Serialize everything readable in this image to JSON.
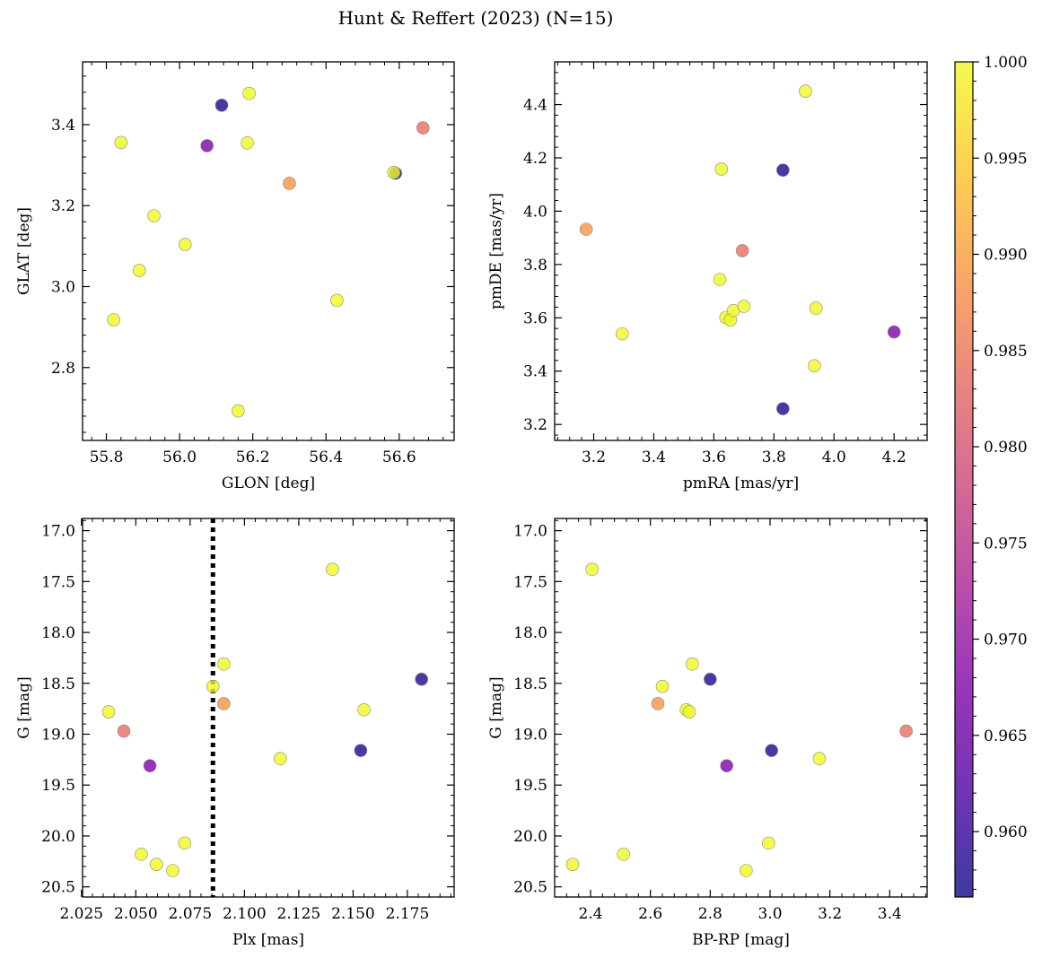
{
  "figure": {
    "title": "Hunt & Reffert (2023) (N=15)"
  },
  "colorbar": {
    "min": 0.9566,
    "max": 1.0,
    "colormap": "plasma",
    "ticks": [
      0.96,
      0.965,
      0.97,
      0.975,
      0.98,
      0.985,
      0.99,
      0.995,
      1.0
    ],
    "tick_labels": [
      "0.960",
      "0.965",
      "0.970",
      "0.975",
      "0.980",
      "0.985",
      "0.990",
      "0.995",
      "1.000"
    ]
  },
  "chart_data": [
    {
      "type": "scatter",
      "id": "glon-glat",
      "title": "",
      "xlabel": "GLON [deg]",
      "ylabel": "GLAT [deg]",
      "xlim": [
        55.735,
        56.75
      ],
      "ylim": [
        2.62,
        3.555
      ],
      "invert_y": false,
      "xticks": [
        55.8,
        56.0,
        56.2,
        56.4,
        56.6
      ],
      "xtick_labels": [
        "55.8",
        "56.0",
        "56.2",
        "56.4",
        "56.6"
      ],
      "yticks": [
        2.8,
        3.0,
        3.2,
        3.4
      ],
      "ytick_labels": [
        "2.8",
        "3.0",
        "3.2",
        "3.4"
      ],
      "points": [
        {
          "x": 55.82,
          "y": 2.918,
          "p": 1.0
        },
        {
          "x": 55.84,
          "y": 3.356,
          "p": 1.0
        },
        {
          "x": 55.89,
          "y": 3.04,
          "p": 1.0
        },
        {
          "x": 55.93,
          "y": 3.175,
          "p": 1.0
        },
        {
          "x": 56.015,
          "y": 3.104,
          "p": 1.0
        },
        {
          "x": 56.075,
          "y": 3.348,
          "p": 0.967
        },
        {
          "x": 56.115,
          "y": 3.448,
          "p": 0.958
        },
        {
          "x": 56.16,
          "y": 2.693,
          "p": 1.0
        },
        {
          "x": 56.185,
          "y": 3.355,
          "p": 1.0
        },
        {
          "x": 56.19,
          "y": 3.477,
          "p": 1.0
        },
        {
          "x": 56.3,
          "y": 3.255,
          "p": 0.989
        },
        {
          "x": 56.43,
          "y": 2.966,
          "p": 1.0
        },
        {
          "x": 56.59,
          "y": 3.28,
          "p": 0.958
        },
        {
          "x": 56.585,
          "y": 3.282,
          "p": 1.0
        },
        {
          "x": 56.665,
          "y": 3.392,
          "p": 0.984
        }
      ]
    },
    {
      "type": "scatter",
      "id": "pmra-pmde",
      "title": "",
      "xlabel": "pmRA [mas/yr]",
      "ylabel": "pmDE [mas/yr]",
      "xlim": [
        3.07,
        4.31
      ],
      "ylim": [
        3.14,
        4.56
      ],
      "invert_y": false,
      "xticks": [
        3.2,
        3.4,
        3.6,
        3.8,
        4.0,
        4.2
      ],
      "xtick_labels": [
        "3.2",
        "3.4",
        "3.6",
        "3.8",
        "4.0",
        "4.2"
      ],
      "yticks": [
        3.2,
        3.4,
        3.6,
        3.8,
        4.0,
        4.2,
        4.4
      ],
      "ytick_labels": [
        "3.2",
        "3.4",
        "3.6",
        "3.8",
        "4.0",
        "4.2",
        "4.4"
      ],
      "points": [
        {
          "x": 3.175,
          "y": 3.932,
          "p": 0.989
        },
        {
          "x": 3.295,
          "y": 3.54,
          "p": 1.0
        },
        {
          "x": 3.62,
          "y": 3.744,
          "p": 1.0
        },
        {
          "x": 3.625,
          "y": 4.158,
          "p": 1.0
        },
        {
          "x": 3.64,
          "y": 3.601,
          "p": 1.0
        },
        {
          "x": 3.655,
          "y": 3.592,
          "p": 1.0
        },
        {
          "x": 3.665,
          "y": 3.627,
          "p": 1.0
        },
        {
          "x": 3.695,
          "y": 3.852,
          "p": 0.984
        },
        {
          "x": 3.7,
          "y": 3.643,
          "p": 1.0
        },
        {
          "x": 3.83,
          "y": 4.154,
          "p": 0.958
        },
        {
          "x": 3.83,
          "y": 3.259,
          "p": 0.958
        },
        {
          "x": 3.905,
          "y": 4.45,
          "p": 1.0
        },
        {
          "x": 3.935,
          "y": 3.42,
          "p": 1.0
        },
        {
          "x": 3.94,
          "y": 3.636,
          "p": 1.0
        },
        {
          "x": 4.2,
          "y": 3.547,
          "p": 0.967
        }
      ]
    },
    {
      "type": "scatter",
      "id": "plx-g",
      "title": "",
      "xlabel": "Plx [mas]",
      "ylabel": "G [mag]",
      "xlim": [
        2.0255,
        2.1965
      ],
      "ylim": [
        16.88,
        20.6
      ],
      "invert_y": true,
      "vline": 2.0855,
      "xticks": [
        2.025,
        2.05,
        2.075,
        2.1,
        2.125,
        2.15,
        2.175
      ],
      "xtick_labels": [
        "2.025",
        "2.050",
        "2.075",
        "2.100",
        "2.125",
        "2.150",
        "2.175"
      ],
      "yticks": [
        17.0,
        17.5,
        18.0,
        18.5,
        19.0,
        19.5,
        20.0,
        20.5
      ],
      "ytick_labels": [
        "17.0",
        "17.5",
        "18.0",
        "18.5",
        "19.0",
        "19.5",
        "20.0",
        "20.5"
      ],
      "points": [
        {
          "x": 2.0375,
          "y": 18.78,
          "p": 1.0
        },
        {
          "x": 2.0445,
          "y": 18.97,
          "p": 0.984
        },
        {
          "x": 2.0525,
          "y": 20.18,
          "p": 1.0
        },
        {
          "x": 2.0565,
          "y": 19.31,
          "p": 0.967
        },
        {
          "x": 2.0595,
          "y": 20.28,
          "p": 1.0
        },
        {
          "x": 2.067,
          "y": 20.34,
          "p": 1.0
        },
        {
          "x": 2.0725,
          "y": 20.07,
          "p": 1.0
        },
        {
          "x": 2.0855,
          "y": 18.53,
          "p": 1.0
        },
        {
          "x": 2.0905,
          "y": 18.31,
          "p": 1.0
        },
        {
          "x": 2.0905,
          "y": 18.7,
          "p": 0.989
        },
        {
          "x": 2.1165,
          "y": 19.24,
          "p": 1.0
        },
        {
          "x": 2.1405,
          "y": 17.38,
          "p": 1.0
        },
        {
          "x": 2.1535,
          "y": 19.16,
          "p": 0.958
        },
        {
          "x": 2.155,
          "y": 18.76,
          "p": 1.0
        },
        {
          "x": 2.1815,
          "y": 18.46,
          "p": 0.958
        }
      ]
    },
    {
      "type": "scatter",
      "id": "bprp-g",
      "title": "",
      "xlabel": "BP-RP [mag]",
      "ylabel": "G [mag]",
      "xlim": [
        2.28,
        3.525
      ],
      "ylim": [
        16.88,
        20.6
      ],
      "invert_y": true,
      "xticks": [
        2.4,
        2.6,
        2.8,
        3.0,
        3.2,
        3.4
      ],
      "xtick_labels": [
        "2.4",
        "2.6",
        "2.8",
        "3.0",
        "3.2",
        "3.4"
      ],
      "yticks": [
        17.0,
        17.5,
        18.0,
        18.5,
        19.0,
        19.5,
        20.0,
        20.5
      ],
      "ytick_labels": [
        "17.0",
        "17.5",
        "18.0",
        "18.5",
        "19.0",
        "19.5",
        "20.0",
        "20.5"
      ],
      "points": [
        {
          "x": 2.34,
          "y": 20.28,
          "p": 1.0
        },
        {
          "x": 2.405,
          "y": 17.38,
          "p": 1.0
        },
        {
          "x": 2.51,
          "y": 20.18,
          "p": 1.0
        },
        {
          "x": 2.625,
          "y": 18.7,
          "p": 0.989
        },
        {
          "x": 2.64,
          "y": 18.53,
          "p": 1.0
        },
        {
          "x": 2.72,
          "y": 18.76,
          "p": 1.0
        },
        {
          "x": 2.73,
          "y": 18.78,
          "p": 1.0
        },
        {
          "x": 2.74,
          "y": 18.31,
          "p": 1.0
        },
        {
          "x": 2.8,
          "y": 18.46,
          "p": 0.958
        },
        {
          "x": 2.855,
          "y": 19.31,
          "p": 0.967
        },
        {
          "x": 2.92,
          "y": 20.34,
          "p": 1.0
        },
        {
          "x": 2.995,
          "y": 20.07,
          "p": 1.0
        },
        {
          "x": 3.005,
          "y": 19.16,
          "p": 0.958
        },
        {
          "x": 3.165,
          "y": 19.24,
          "p": 1.0
        },
        {
          "x": 3.455,
          "y": 18.97,
          "p": 0.984
        }
      ]
    }
  ]
}
